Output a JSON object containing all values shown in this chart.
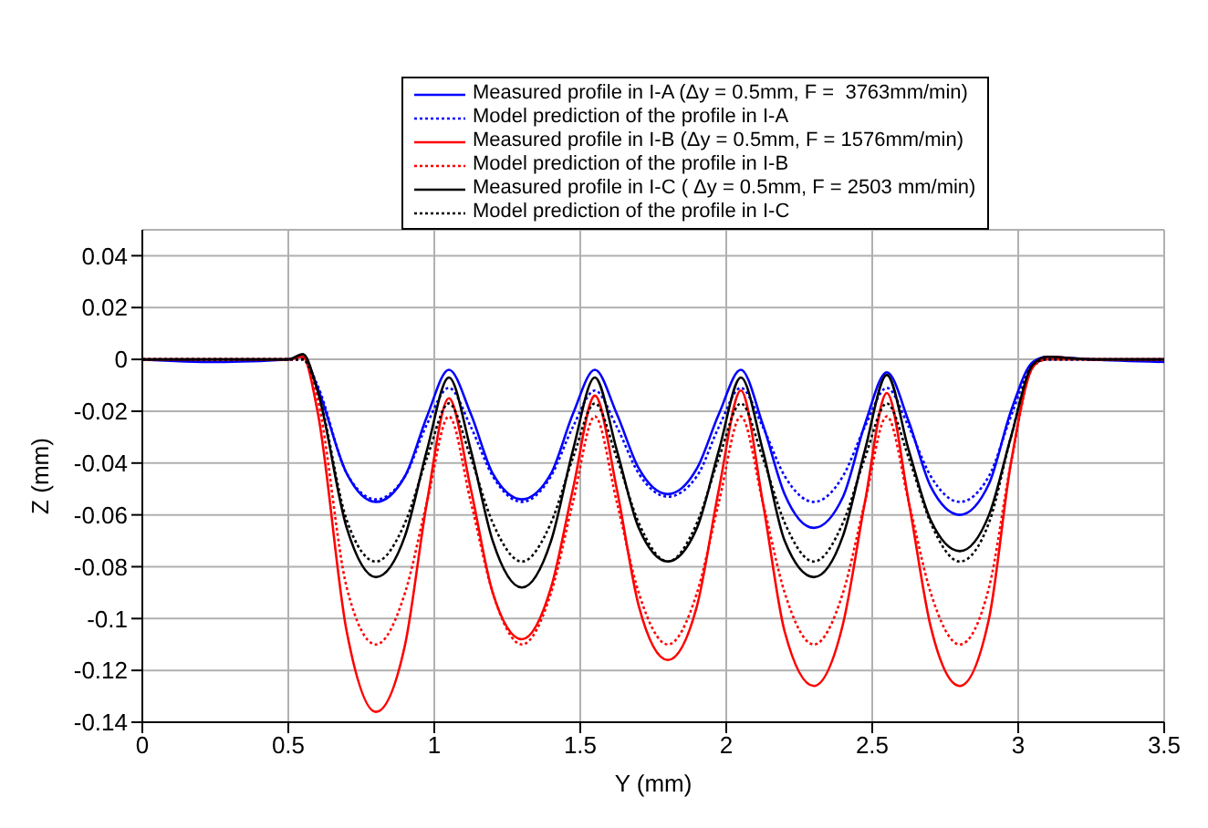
{
  "chart_data": {
    "type": "line",
    "xlabel": "Y (mm)",
    "ylabel": "Z (mm)",
    "x": [
      0,
      0.25,
      0.5,
      0.55,
      0.6,
      0.7,
      0.8,
      0.9,
      0.975,
      1.05,
      1.125,
      1.2,
      1.3,
      1.4,
      1.475,
      1.55,
      1.625,
      1.7,
      1.8,
      1.9,
      1.975,
      2.05,
      2.125,
      2.2,
      2.3,
      2.4,
      2.475,
      2.55,
      2.625,
      2.7,
      2.8,
      2.9,
      2.975,
      3.05,
      3.1,
      3.25,
      3.5
    ],
    "series": [
      {
        "name": "Measured profile in I-A (Δy = 0.5mm, F =  3763mm/min)",
        "color": "#0000ff",
        "line_style": "solid",
        "values": [
          0,
          -0.001,
          0,
          0.001,
          -0.011,
          -0.044,
          -0.055,
          -0.045,
          -0.022,
          -0.004,
          -0.021,
          -0.044,
          -0.054,
          -0.044,
          -0.021,
          -0.004,
          -0.021,
          -0.042,
          -0.052,
          -0.042,
          -0.021,
          -0.004,
          -0.025,
          -0.052,
          -0.065,
          -0.053,
          -0.025,
          -0.005,
          -0.024,
          -0.049,
          -0.06,
          -0.048,
          -0.02,
          -0.001,
          0.001,
          0,
          -0.001
        ]
      },
      {
        "name": "Model prediction of the profile in I-A",
        "color": "#0000ff",
        "line_style": "dotted",
        "values": [
          0,
          0,
          0,
          0,
          -0.01,
          -0.044,
          -0.054,
          -0.045,
          -0.025,
          -0.011,
          -0.026,
          -0.045,
          -0.055,
          -0.045,
          -0.026,
          -0.012,
          -0.026,
          -0.044,
          -0.053,
          -0.045,
          -0.026,
          -0.011,
          -0.026,
          -0.045,
          -0.055,
          -0.045,
          -0.026,
          -0.011,
          -0.026,
          -0.045,
          -0.055,
          -0.045,
          -0.022,
          -0.002,
          0,
          0,
          0
        ]
      },
      {
        "name": "Measured profile in I-B (Δy = 0.5mm, F = 1576mm/min)",
        "color": "#ff0000",
        "line_style": "solid",
        "values": [
          0,
          0,
          0,
          0.001,
          -0.02,
          -0.105,
          -0.136,
          -0.11,
          -0.055,
          -0.015,
          -0.05,
          -0.09,
          -0.108,
          -0.088,
          -0.05,
          -0.014,
          -0.05,
          -0.095,
          -0.116,
          -0.095,
          -0.05,
          -0.012,
          -0.055,
          -0.105,
          -0.126,
          -0.102,
          -0.055,
          -0.013,
          -0.055,
          -0.103,
          -0.126,
          -0.1,
          -0.04,
          -0.003,
          0.001,
          0,
          0
        ]
      },
      {
        "name": "Model prediction of the profile in I-B",
        "color": "#ff0000",
        "line_style": "dotted",
        "values": [
          0,
          0,
          0,
          0,
          -0.015,
          -0.088,
          -0.11,
          -0.09,
          -0.055,
          -0.022,
          -0.055,
          -0.09,
          -0.11,
          -0.09,
          -0.055,
          -0.022,
          -0.055,
          -0.09,
          -0.11,
          -0.09,
          -0.055,
          -0.022,
          -0.055,
          -0.09,
          -0.11,
          -0.09,
          -0.055,
          -0.022,
          -0.055,
          -0.09,
          -0.11,
          -0.088,
          -0.04,
          -0.003,
          0,
          0,
          0
        ]
      },
      {
        "name": "Measured profile in I-C ( Δy = 0.5mm, F = 2503 mm/min)",
        "color": "#000000",
        "line_style": "solid",
        "values": [
          0,
          0,
          0,
          0.002,
          -0.012,
          -0.065,
          -0.084,
          -0.068,
          -0.035,
          -0.007,
          -0.035,
          -0.07,
          -0.088,
          -0.07,
          -0.035,
          -0.007,
          -0.035,
          -0.065,
          -0.078,
          -0.065,
          -0.035,
          -0.007,
          -0.035,
          -0.07,
          -0.084,
          -0.068,
          -0.035,
          -0.006,
          -0.035,
          -0.062,
          -0.074,
          -0.06,
          -0.03,
          -0.002,
          0.001,
          0,
          0
        ]
      },
      {
        "name": "Model prediction of the profile in I-C",
        "color": "#000000",
        "line_style": "dotted",
        "values": [
          0,
          0,
          0,
          0,
          -0.012,
          -0.062,
          -0.078,
          -0.063,
          -0.038,
          -0.017,
          -0.038,
          -0.063,
          -0.078,
          -0.063,
          -0.038,
          -0.017,
          -0.038,
          -0.063,
          -0.078,
          -0.063,
          -0.038,
          -0.017,
          -0.038,
          -0.063,
          -0.078,
          -0.063,
          -0.038,
          -0.017,
          -0.038,
          -0.063,
          -0.078,
          -0.063,
          -0.03,
          -0.002,
          0,
          0,
          0
        ]
      }
    ],
    "xlim": [
      0,
      3.5
    ],
    "xticks": [
      0,
      0.5,
      1,
      1.5,
      2,
      2.5,
      3,
      3.5
    ],
    "ylim": [
      -0.14,
      0.05
    ],
    "yticks": [
      0.04,
      0.02,
      0,
      -0.02,
      -0.04,
      -0.06,
      -0.08,
      -0.1,
      -0.12,
      -0.14
    ],
    "grid": true,
    "legend": "top",
    "marker": "none"
  }
}
